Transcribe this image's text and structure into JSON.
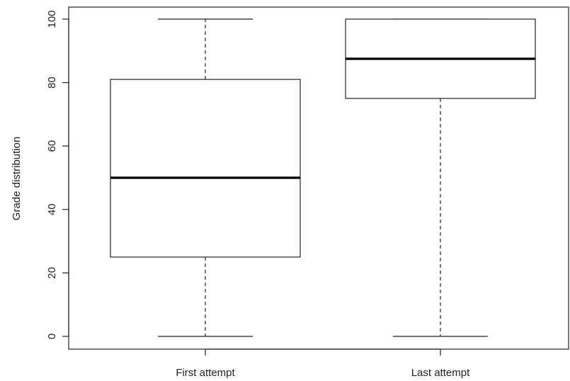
{
  "chart_data": {
    "type": "box",
    "title": "",
    "xlabel": "",
    "ylabel": "Grade distribution",
    "ylim": [
      0,
      100
    ],
    "yticks": [
      0,
      20,
      40,
      60,
      80,
      100
    ],
    "categories": [
      "First attempt",
      "Last attempt"
    ],
    "boxes": [
      {
        "category": "First attempt",
        "min": 0,
        "q1": 25,
        "median": 50,
        "q3": 81,
        "max": 100
      },
      {
        "category": "Last attempt",
        "min": 0,
        "q1": 75,
        "median": 87.5,
        "q3": 100,
        "max": 100
      }
    ],
    "grid": false,
    "legend": "none"
  }
}
